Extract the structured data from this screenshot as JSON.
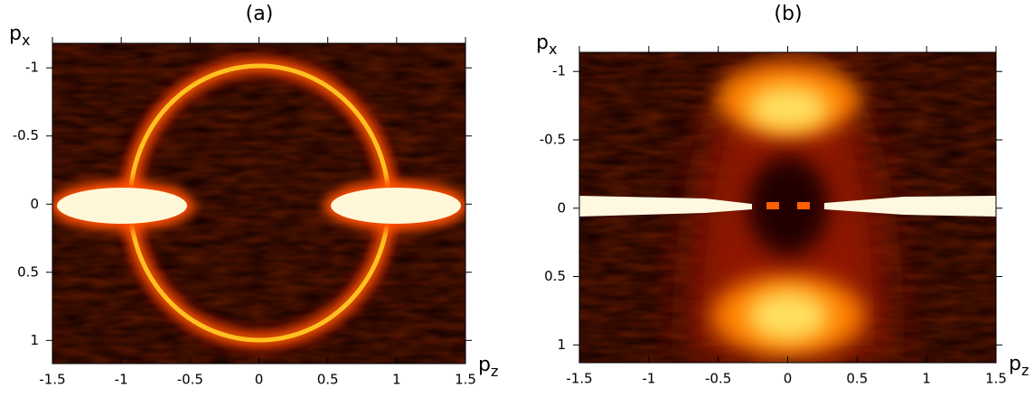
{
  "chart_data": [
    {
      "type": "heatmap",
      "title": "(a)",
      "xlabel": {
        "text": "p",
        "sub": "z"
      },
      "ylabel": {
        "text": "p",
        "sub": "x"
      },
      "xlim": [
        -1.5,
        1.5
      ],
      "xticks": [
        -1.5,
        -1,
        -0.5,
        0,
        0.5,
        1,
        1.5
      ],
      "ylim": [
        -1.18,
        1.17
      ],
      "y_inverted": true,
      "yticks": [
        -1,
        -0.5,
        0,
        0.5,
        1
      ]
    },
    {
      "type": "heatmap",
      "title": "(b)",
      "xlabel": {
        "text": "p",
        "sub": "z"
      },
      "ylabel": {
        "text": "p",
        "sub": "x"
      },
      "xlim": [
        -1.5,
        1.5
      ],
      "xticks": [
        -1.5,
        -1,
        -0.5,
        0,
        0.5,
        1,
        1.5
      ],
      "ylim": [
        -1.14,
        1.13
      ],
      "y_inverted": true,
      "yticks": [
        -1,
        -0.5,
        0,
        0.5,
        1
      ]
    }
  ]
}
